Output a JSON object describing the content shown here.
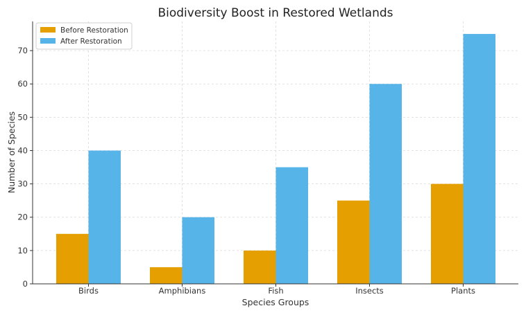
{
  "chart_data": {
    "type": "bar",
    "title": "Biodiversity Boost in Restored Wetlands",
    "xlabel": "Species Groups",
    "ylabel": "Number of Species",
    "categories": [
      "Birds",
      "Amphibians",
      "Fish",
      "Insects",
      "Plants"
    ],
    "series": [
      {
        "name": "Before Restoration",
        "values": [
          15,
          5,
          10,
          25,
          30
        ],
        "color": "#E69F00"
      },
      {
        "name": "After Restoration",
        "values": [
          40,
          20,
          35,
          60,
          75
        ],
        "color": "#56B4E9"
      }
    ],
    "ylim": [
      0,
      78.75
    ],
    "yticks": [
      0,
      10,
      20,
      30,
      40,
      50,
      60,
      70
    ],
    "grid": true,
    "legend": "top-left"
  }
}
